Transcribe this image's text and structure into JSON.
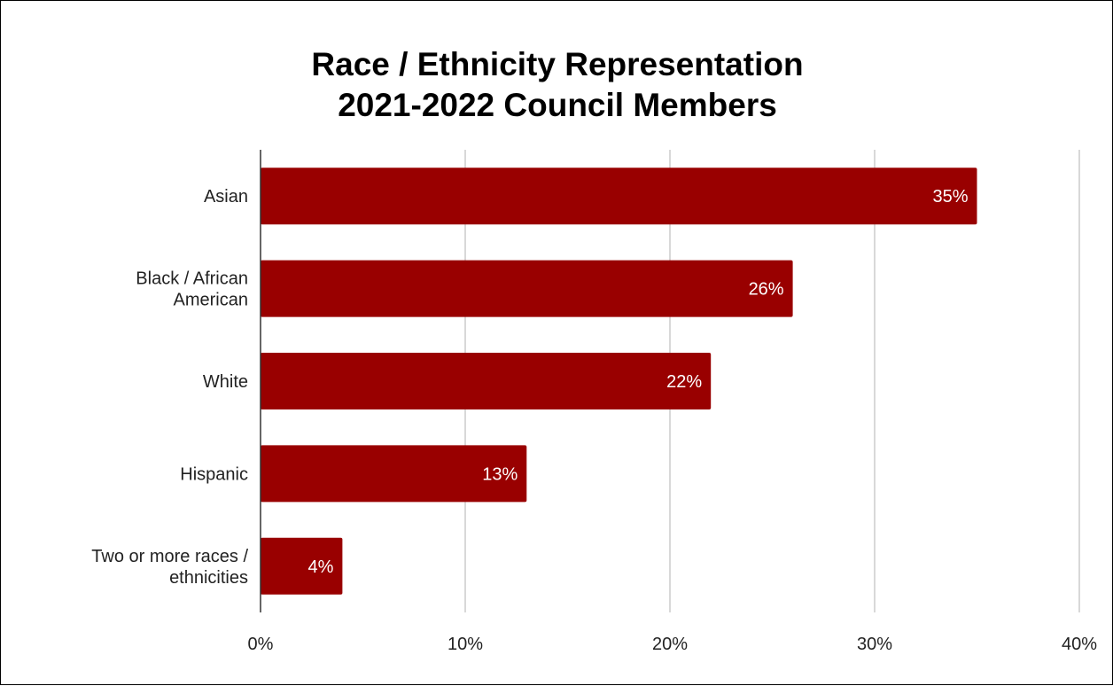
{
  "chart_data": {
    "type": "bar",
    "orientation": "horizontal",
    "title": [
      "Race / Ethnicity Representation",
      "2021-2022 Council Members"
    ],
    "categories": [
      [
        "Asian"
      ],
      [
        "Black / African",
        "American"
      ],
      [
        "White"
      ],
      [
        "Hispanic"
      ],
      [
        "Two or more races /",
        "ethnicities"
      ]
    ],
    "values": [
      35,
      26,
      22,
      13,
      4
    ],
    "data_labels": [
      "35%",
      "26%",
      "22%",
      "13%",
      "4%"
    ],
    "xlim": [
      0,
      40
    ],
    "xticks": [
      0,
      10,
      20,
      30,
      40
    ],
    "xtick_labels": [
      "0%",
      "10%",
      "20%",
      "30%",
      "40%"
    ],
    "grid": true,
    "legend": "none",
    "colors": {
      "bar": "#990000",
      "grid": "#cccccc",
      "axis": "#333333"
    }
  }
}
